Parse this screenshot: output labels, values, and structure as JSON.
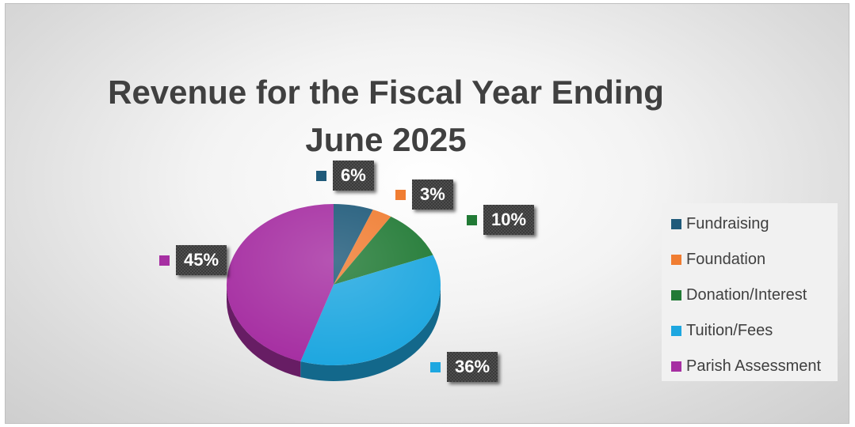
{
  "chart_data": {
    "type": "pie",
    "title": "Revenue for the Fiscal Year Ending June 2025",
    "categories": [
      "Fundraising",
      "Foundation",
      "Donation/Interest",
      "Tuition/Fees",
      "Parish Assessment"
    ],
    "values": [
      6,
      3,
      10,
      36,
      45
    ],
    "data_labels": [
      "6%",
      "3%",
      "10%",
      "36%",
      "45%"
    ],
    "colors": [
      "#1f5a7a",
      "#f07d32",
      "#217a35",
      "#1ea7e0",
      "#a62fa2"
    ],
    "legend_position": "right",
    "style": "3d"
  }
}
